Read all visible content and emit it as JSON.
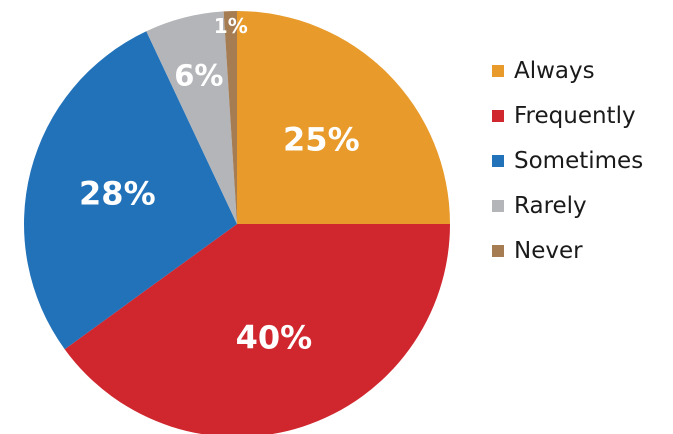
{
  "chart_data": {
    "type": "pie",
    "title": "",
    "start": "top",
    "direction": "clockwise",
    "slices": [
      {
        "label": "Always",
        "value": 25,
        "display": "25%",
        "color": "#E89B2B"
      },
      {
        "label": "Frequently",
        "value": 40,
        "display": "40%",
        "color": "#D0262E"
      },
      {
        "label": "Sometimes",
        "value": 28,
        "display": "28%",
        "color": "#2272BA"
      },
      {
        "label": "Rarely",
        "value": 6,
        "display": "6%",
        "color": "#B3B5B8"
      },
      {
        "label": "Never",
        "value": 1,
        "display": "1%",
        "color": "#A67C52"
      }
    ],
    "legend_position": "right"
  }
}
